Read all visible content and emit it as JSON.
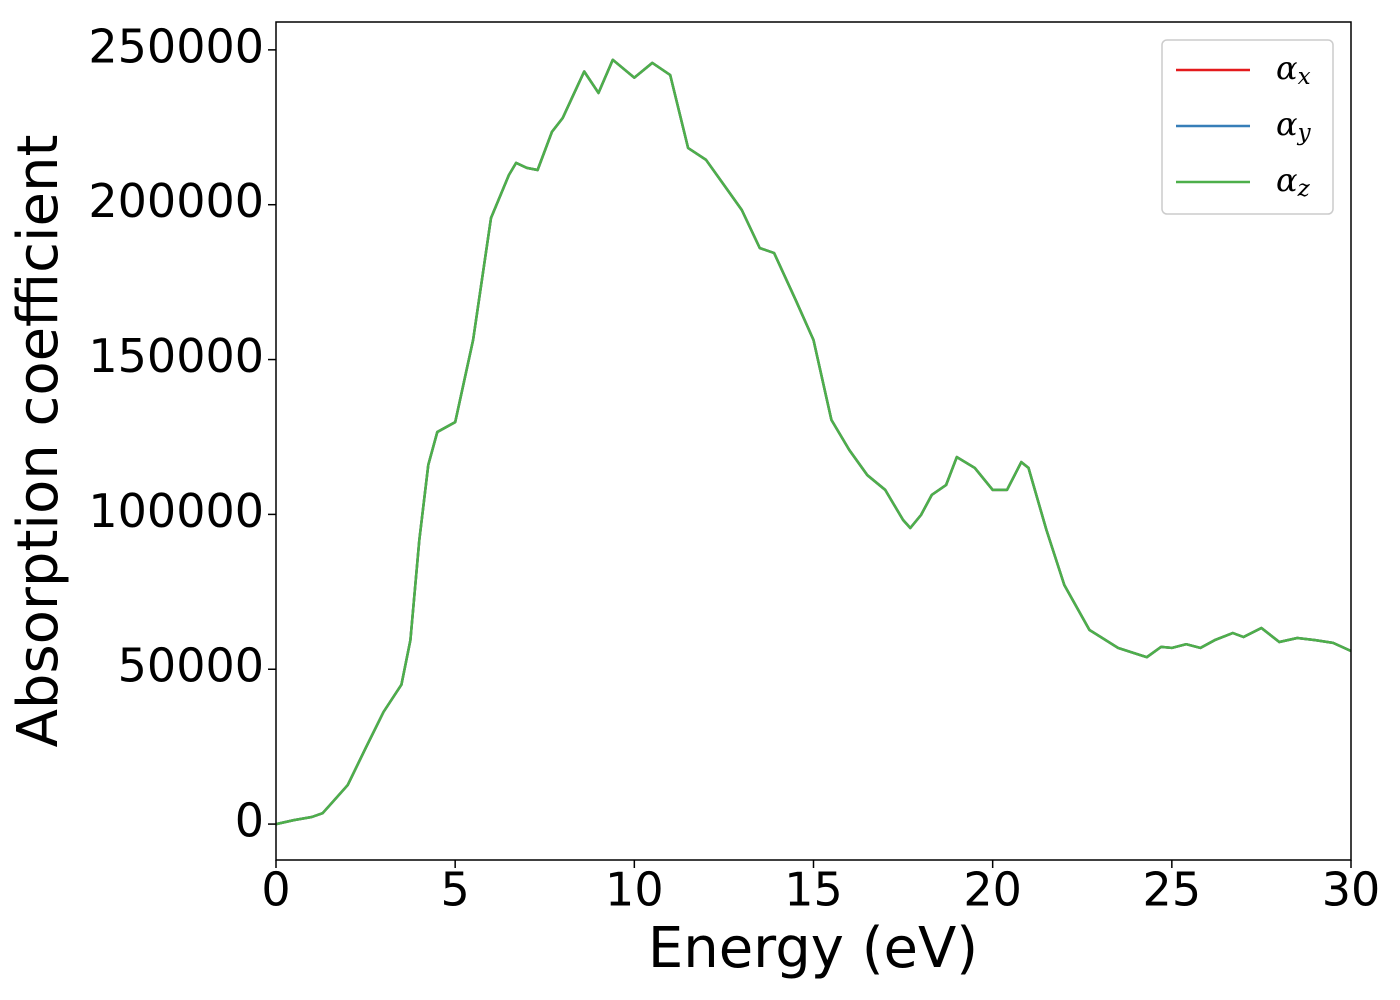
{
  "chart_data": {
    "type": "line",
    "xlabel": "Energy (eV)",
    "ylabel": "Absorption coefficient",
    "x": [
      0,
      0.5,
      1.0,
      1.3,
      1.5,
      2.0,
      2.5,
      3.0,
      3.5,
      3.75,
      4.0,
      4.25,
      4.5,
      5.0,
      5.5,
      6.0,
      6.5,
      6.7,
      7.0,
      7.3,
      7.7,
      8.0,
      8.3,
      8.6,
      9.0,
      9.4,
      10.0,
      10.5,
      11.0,
      11.5,
      12.0,
      12.5,
      13.0,
      13.5,
      13.9,
      14.5,
      15.0,
      15.5,
      16.0,
      16.5,
      17.0,
      17.5,
      17.7,
      18.0,
      18.3,
      18.7,
      19.0,
      19.5,
      20.0,
      20.4,
      20.8,
      21.0,
      21.5,
      22.0,
      22.7,
      23.5,
      24.3,
      24.7,
      25.0,
      25.4,
      25.8,
      26.2,
      26.7,
      27.0,
      27.5,
      28.0,
      28.5,
      29.0,
      29.5,
      30.0
    ],
    "series": [
      {
        "name": "αx",
        "color": "#e41a1c",
        "values": [
          0,
          1300,
          2300,
          3500,
          6100,
          12600,
          24500,
          36200,
          45000,
          59400,
          91700,
          116000,
          126600,
          129800,
          156300,
          195700,
          209600,
          213500,
          211900,
          211200,
          223500,
          228000,
          235500,
          243000,
          236100,
          246800,
          241000,
          245800,
          241900,
          218300,
          214500,
          206400,
          198300,
          186000,
          184400,
          169300,
          156300,
          130500,
          120800,
          112700,
          107900,
          98200,
          95600,
          99800,
          106300,
          109500,
          118500,
          115000,
          107900,
          107900,
          116900,
          115000,
          95000,
          77200,
          62700,
          56900,
          53900,
          57200,
          56900,
          58100,
          56900,
          59400,
          61700,
          60400,
          63300,
          58800,
          60100,
          59400,
          58500,
          55900
        ]
      },
      {
        "name": "αy",
        "color": "#377eb8",
        "values": [
          0,
          1300,
          2300,
          3500,
          6100,
          12600,
          24500,
          36200,
          45000,
          59400,
          91700,
          116000,
          126600,
          129800,
          156300,
          195700,
          209600,
          213500,
          211900,
          211200,
          223500,
          228000,
          235500,
          243000,
          236100,
          246800,
          241000,
          245800,
          241900,
          218300,
          214500,
          206400,
          198300,
          186000,
          184400,
          169300,
          156300,
          130500,
          120800,
          112700,
          107900,
          98200,
          95600,
          99800,
          106300,
          109500,
          118500,
          115000,
          107900,
          107900,
          116900,
          115000,
          95000,
          77200,
          62700,
          56900,
          53900,
          57200,
          56900,
          58100,
          56900,
          59400,
          61700,
          60400,
          63300,
          58800,
          60100,
          59400,
          58500,
          55900
        ]
      },
      {
        "name": "αz",
        "color": "#4daf4a",
        "values": [
          0,
          1300,
          2300,
          3500,
          6100,
          12600,
          24500,
          36200,
          45000,
          59400,
          91700,
          116000,
          126600,
          129800,
          156300,
          195700,
          209600,
          213500,
          211900,
          211200,
          223500,
          228000,
          235500,
          243000,
          236100,
          246800,
          241000,
          245800,
          241900,
          218300,
          214500,
          206400,
          198300,
          186000,
          184400,
          169300,
          156300,
          130500,
          120800,
          112700,
          107900,
          98200,
          95600,
          99800,
          106300,
          109500,
          118500,
          115000,
          107900,
          107900,
          116900,
          115000,
          95000,
          77200,
          62700,
          56900,
          53900,
          57200,
          56900,
          58100,
          56900,
          59400,
          61700,
          60400,
          63300,
          58800,
          60100,
          59400,
          58500,
          55900
        ]
      }
    ],
    "xlim": [
      0,
      30
    ],
    "xticks": [
      0,
      5,
      10,
      15,
      20,
      25,
      30
    ],
    "ylim": [
      -11600,
      259000
    ],
    "yticks": [
      0,
      50000,
      100000,
      150000,
      200000,
      250000
    ],
    "legend": "upper right"
  }
}
